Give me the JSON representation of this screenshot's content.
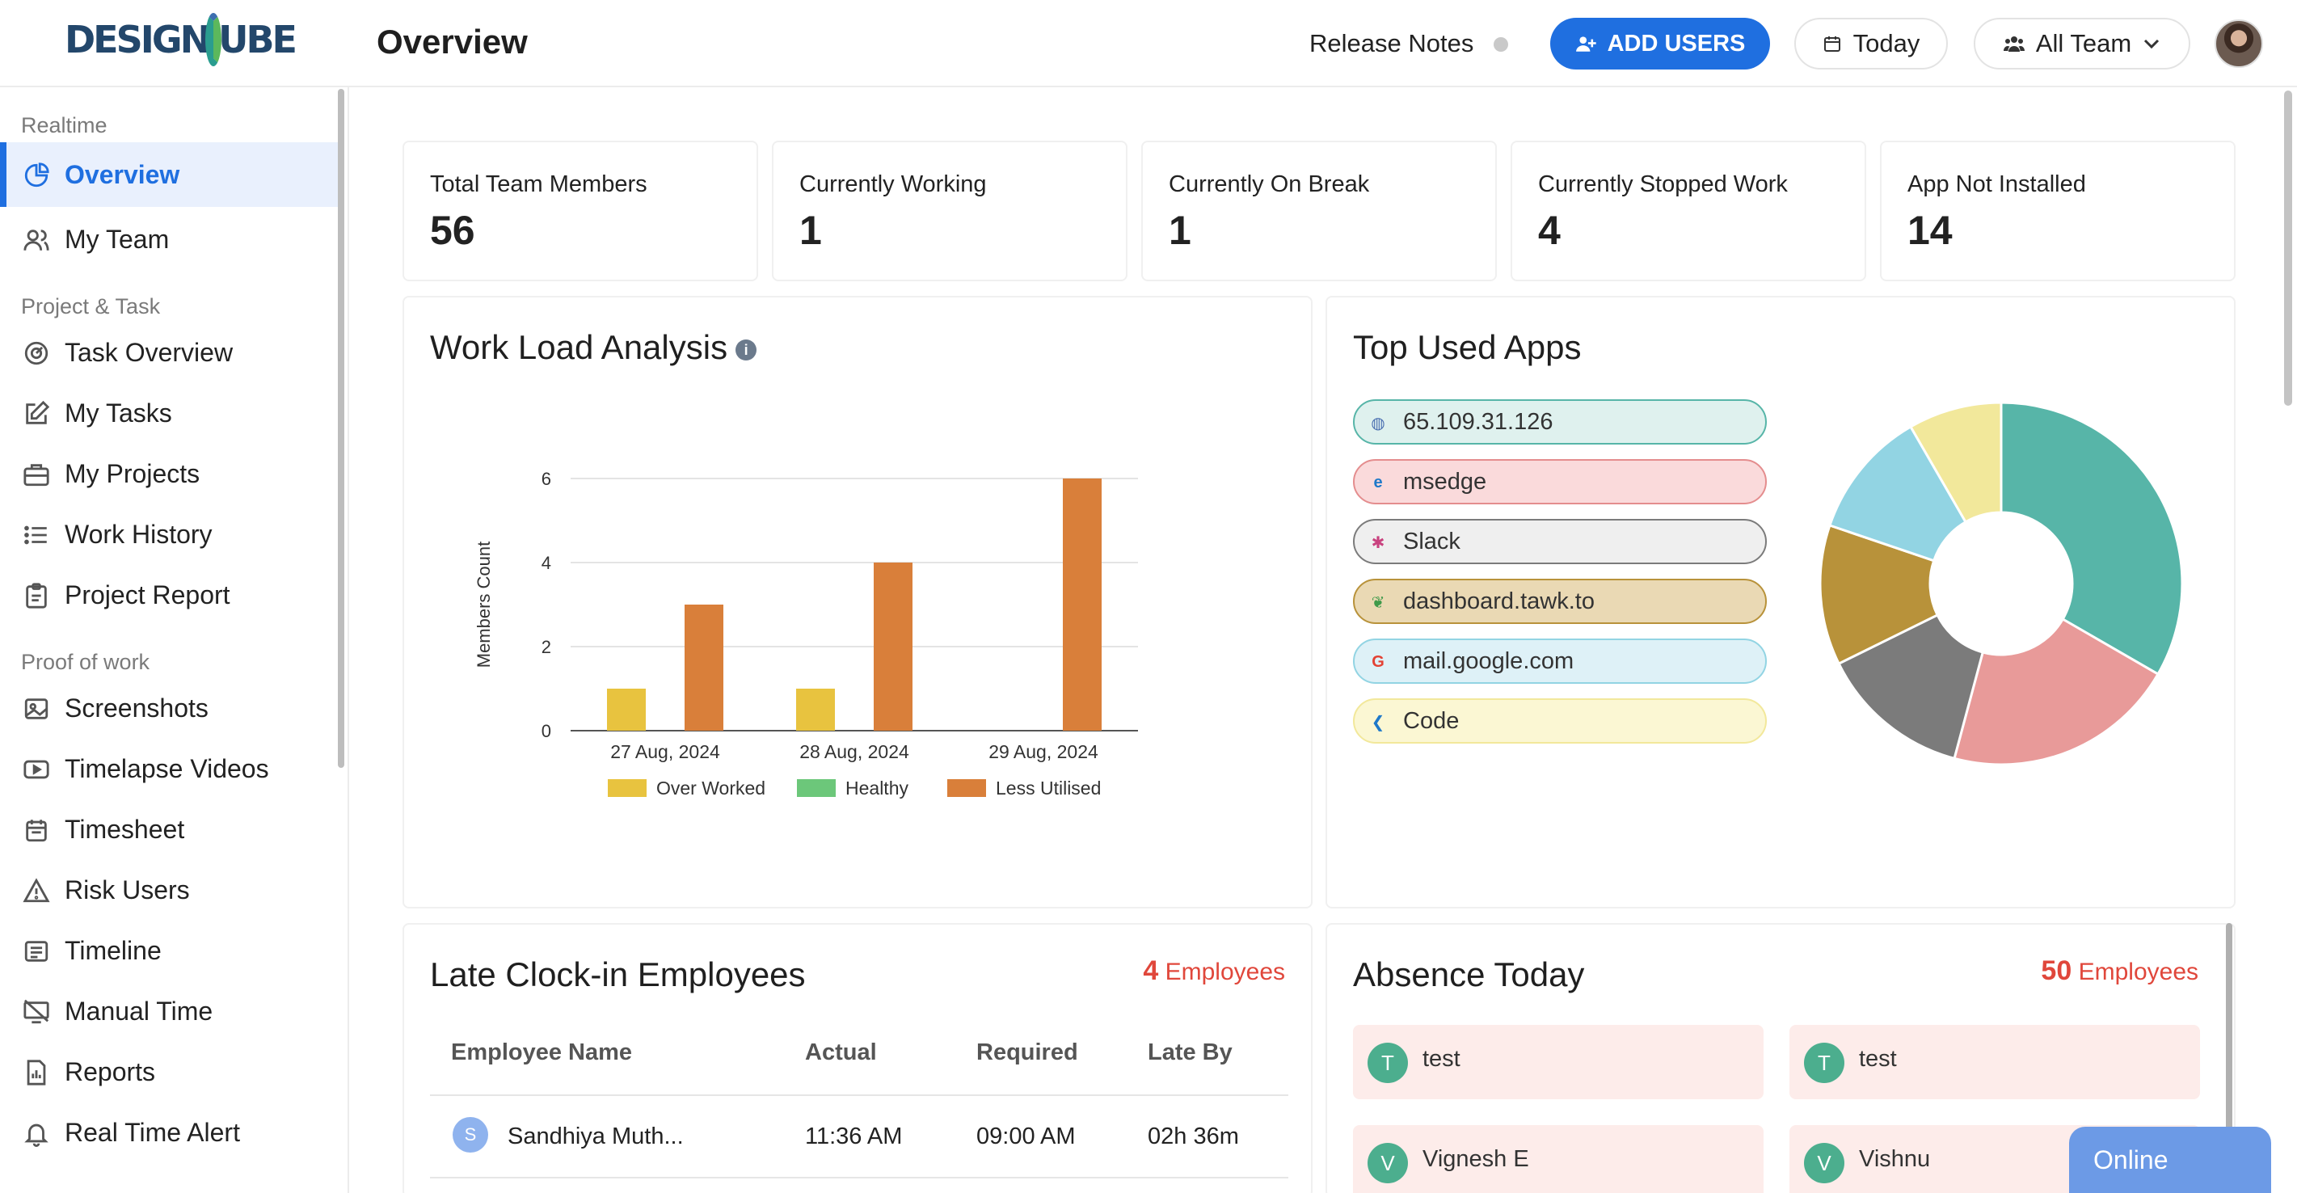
{
  "app": {
    "logo_text_left": "DESIGN",
    "logo_text_right": "UBE",
    "page_title": "Overview"
  },
  "header": {
    "release_notes": "Release Notes",
    "add_users": "ADD USERS",
    "date_filter": "Today",
    "team_filter": "All Team"
  },
  "sidebar": {
    "sections": {
      "realtime": "Realtime",
      "project_task": "Project & Task",
      "proof_of_work": "Proof of work"
    },
    "items": [
      {
        "label": "Overview",
        "icon": "pie-icon",
        "active": true
      },
      {
        "label": "My Team",
        "icon": "users-icon"
      },
      {
        "label": "Task Overview",
        "icon": "gauge-icon"
      },
      {
        "label": "My Tasks",
        "icon": "edit-icon"
      },
      {
        "label": "My Projects",
        "icon": "briefcase-icon"
      },
      {
        "label": "Work History",
        "icon": "list-icon"
      },
      {
        "label": "Project Report",
        "icon": "clipboard-icon"
      },
      {
        "label": "Screenshots",
        "icon": "image-icon"
      },
      {
        "label": "Timelapse Videos",
        "icon": "video-icon"
      },
      {
        "label": "Timesheet",
        "icon": "calendar-icon"
      },
      {
        "label": "Risk Users",
        "icon": "warning-icon"
      },
      {
        "label": "Timeline",
        "icon": "timeline-icon"
      },
      {
        "label": "Manual Time",
        "icon": "monitor-off-icon"
      },
      {
        "label": "Reports",
        "icon": "report-icon"
      },
      {
        "label": "Real Time Alert",
        "icon": "bell-icon"
      }
    ]
  },
  "stats": [
    {
      "label": "Total Team Members",
      "value": "56"
    },
    {
      "label": "Currently Working",
      "value": "1"
    },
    {
      "label": "Currently On Break",
      "value": "1"
    },
    {
      "label": "Currently Stopped Work",
      "value": "4"
    },
    {
      "label": "App Not Installed",
      "value": "14"
    }
  ],
  "workload": {
    "title": "Work Load Analysis",
    "info": "i"
  },
  "chart_data": [
    {
      "type": "bar",
      "title": "Work Load Analysis",
      "xlabel": "",
      "ylabel": "Members Count",
      "ylim": [
        0,
        6
      ],
      "yticks": [
        "0",
        "2",
        "4",
        "6"
      ],
      "categories": [
        "27 Aug, 2024",
        "28 Aug, 2024",
        "29 Aug, 2024"
      ],
      "series": [
        {
          "name": "Over Worked",
          "color": "#e8c33f",
          "values": [
            1,
            1,
            0
          ]
        },
        {
          "name": "Healthy",
          "color": "#6cc77a",
          "values": [
            0,
            0,
            0
          ]
        },
        {
          "name": "Less Utilised",
          "color": "#d97f3a",
          "values": [
            3,
            4,
            6
          ]
        }
      ],
      "grid": true,
      "legend": "bottom"
    },
    {
      "type": "pie",
      "title": "Top Used Apps",
      "categories": [
        "65.109.31.126",
        "msedge",
        "Slack",
        "dashboard.tawk.to",
        "mail.google.com",
        "Code"
      ],
      "values": [
        32,
        20,
        13,
        12,
        11,
        8
      ],
      "colors": [
        "#57b5a8",
        "#e89a99",
        "#7b7b7b",
        "#b8923a",
        "#92d4e3",
        "#f2e89b"
      ],
      "donut": true,
      "legend": "left"
    }
  ],
  "apps": {
    "title": "Top Used Apps",
    "items": [
      {
        "name": "65.109.31.126",
        "bg": "#dff1ee",
        "border": "#57b5a8",
        "icon": "globe-icon",
        "glyph": "◍",
        "icon_color": "#4a6fb0"
      },
      {
        "name": "msedge",
        "bg": "#fadadb",
        "border": "#e48d8e",
        "icon": "edge-icon",
        "glyph": "e",
        "icon_color": "#1f79c9"
      },
      {
        "name": "Slack",
        "bg": "#efefef",
        "border": "#7b7b7b",
        "icon": "slack-icon",
        "glyph": "✱",
        "icon_color": "#c9427f"
      },
      {
        "name": "dashboard.tawk.to",
        "bg": "#ead9b4",
        "border": "#b8923a",
        "icon": "tawk-icon",
        "glyph": "❦",
        "icon_color": "#3f9a4a"
      },
      {
        "name": "mail.google.com",
        "bg": "#def1f7",
        "border": "#92d4e3",
        "icon": "google-icon",
        "glyph": "G",
        "icon_color": "#e34133"
      },
      {
        "name": "Code",
        "bg": "#fbf7d3",
        "border": "#f2e89b",
        "icon": "vscode-icon",
        "glyph": "❮",
        "icon_color": "#1f79c9"
      }
    ]
  },
  "late_clockin": {
    "title": "Late Clock-in Employees",
    "count": "4",
    "count_label": "Employees",
    "columns": [
      "Employee Name",
      "Actual",
      "Required",
      "Late By"
    ],
    "rows": [
      {
        "initial": "S",
        "name": "Sandhiya Muth...",
        "actual": "11:36 AM",
        "required": "09:00 AM",
        "late_by": "02h 36m"
      }
    ]
  },
  "absence": {
    "title": "Absence Today",
    "count": "50",
    "count_label": "Employees",
    "people": [
      {
        "initial": "T",
        "name": "test"
      },
      {
        "initial": "T",
        "name": "test"
      },
      {
        "initial": "V",
        "name": "Vignesh E"
      },
      {
        "initial": "V",
        "name": "Vishnu"
      }
    ]
  },
  "chat": {
    "status": "Online"
  }
}
